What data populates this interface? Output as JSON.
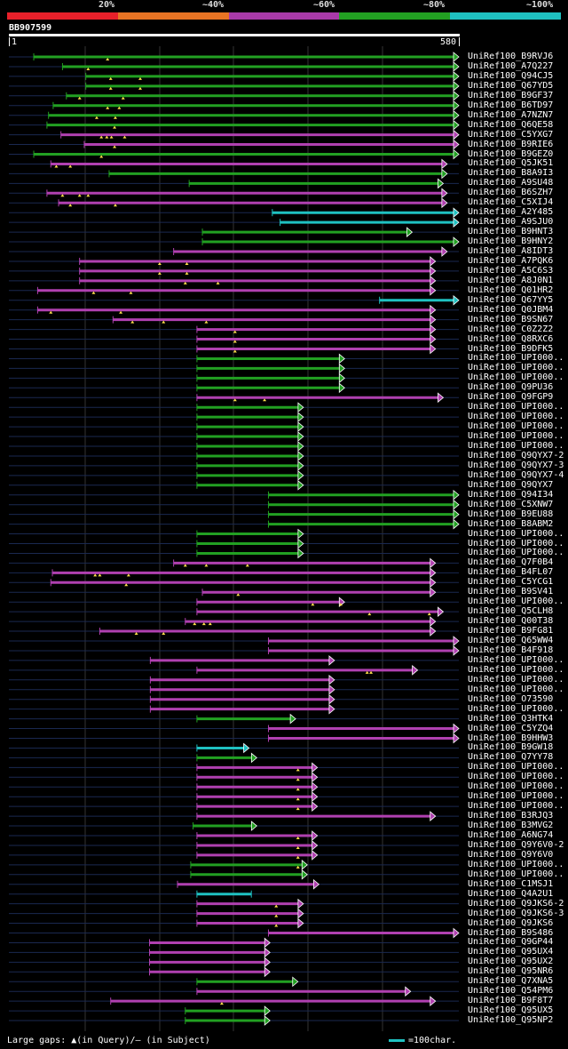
{
  "header": {
    "percent_labels": [
      "20%",
      "~40%",
      "~60%",
      "~80%",
      "~100%"
    ],
    "legend_colors": [
      "#e8202a",
      "#e87424",
      "#a83aa8",
      "#22a022",
      "#1fc1c1"
    ],
    "query_id": "BB907599",
    "ruler_start": "1",
    "ruler_end": "580"
  },
  "footer": {
    "gaps_text": "Large gaps: ▲(in Query)/— (in Subject)",
    "scale_text": "=100char."
  },
  "colors": {
    "green": "#22a022",
    "magenta": "#b040b0",
    "cyan": "#1fc1c1",
    "bg": "#000000"
  },
  "query_length": 580,
  "hits": [
    {
      "label": "UniRef100_B9RVJ6",
      "color": "green",
      "start": 33,
      "end": 580,
      "arrow": true,
      "gaps": [
        128
      ]
    },
    {
      "label": "UniRef100_A7Q227",
      "color": "green",
      "start": 70,
      "end": 580,
      "arrow": true,
      "gaps": [
        103
      ]
    },
    {
      "label": "UniRef100_Q94CJ5",
      "color": "green",
      "start": 100,
      "end": 580,
      "arrow": true,
      "gaps": [
        132,
        170
      ]
    },
    {
      "label": "UniRef100_Q67YD5",
      "color": "green",
      "start": 100,
      "end": 580,
      "arrow": true,
      "gaps": [
        132,
        170
      ]
    },
    {
      "label": "UniRef100_B9GF37",
      "color": "green",
      "start": 75,
      "end": 580,
      "arrow": true,
      "gaps": [
        92,
        148
      ]
    },
    {
      "label": "UniRef100_B6TD97",
      "color": "green",
      "start": 58,
      "end": 580,
      "arrow": true,
      "gaps": [
        128,
        143
      ]
    },
    {
      "label": "UniRef100_A7NZN7",
      "color": "green",
      "start": 52,
      "end": 580,
      "arrow": true,
      "gaps": [
        114,
        138
      ]
    },
    {
      "label": "UniRef100_Q6QE58",
      "color": "green",
      "start": 50,
      "end": 580,
      "arrow": true,
      "gaps": [
        137
      ]
    },
    {
      "label": "UniRef100_C5YXG7",
      "color": "magenta",
      "start": 68,
      "end": 580,
      "arrow": true,
      "gaps": [
        120,
        127,
        133,
        150
      ]
    },
    {
      "label": "UniRef100_B9RIE6",
      "color": "magenta",
      "start": 98,
      "end": 580,
      "arrow": true,
      "gaps": [
        137
      ]
    },
    {
      "label": "UniRef100_B9GEZ0",
      "color": "green",
      "start": 33,
      "end": 580,
      "arrow": true,
      "gaps": [
        120
      ]
    },
    {
      "label": "UniRef100_Q5JK51",
      "color": "magenta",
      "start": 55,
      "end": 565,
      "arrow": true,
      "gaps": [
        62,
        80
      ]
    },
    {
      "label": "UniRef100_B8A9I3",
      "color": "green",
      "start": 130,
      "end": 565,
      "arrow": true,
      "gaps": []
    },
    {
      "label": "UniRef100_A9SU48",
      "color": "green",
      "start": 233,
      "end": 560,
      "arrow": true,
      "gaps": []
    },
    {
      "label": "UniRef100_B6SZH7",
      "color": "magenta",
      "start": 50,
      "end": 565,
      "arrow": true,
      "gaps": [
        70,
        92,
        103
      ]
    },
    {
      "label": "UniRef100_C5XIJ4",
      "color": "magenta",
      "start": 65,
      "end": 565,
      "arrow": true,
      "gaps": [
        80,
        138
      ]
    },
    {
      "label": "UniRef100_A2Y485",
      "color": "cyan",
      "start": 340,
      "end": 580,
      "arrow": true,
      "gaps": []
    },
    {
      "label": "UniRef100_A9SJU0",
      "color": "cyan",
      "start": 350,
      "end": 580,
      "arrow": true,
      "gaps": []
    },
    {
      "label": "UniRef100_B9HNT3",
      "color": "green",
      "start": 250,
      "end": 520,
      "arrow": true,
      "gaps": []
    },
    {
      "label": "UniRef100_B9HNY2",
      "color": "green",
      "start": 250,
      "end": 580,
      "arrow": true,
      "gaps": []
    },
    {
      "label": "UniRef100_A8IDT3",
      "color": "magenta",
      "start": 213,
      "end": 565,
      "arrow": true,
      "gaps": []
    },
    {
      "label": "UniRef100_A7PQK6",
      "color": "magenta",
      "start": 92,
      "end": 550,
      "arrow": true,
      "gaps": [
        195,
        230
      ]
    },
    {
      "label": "UniRef100_A5C6S3",
      "color": "magenta",
      "start": 92,
      "end": 550,
      "arrow": true,
      "gaps": [
        195,
        230
      ]
    },
    {
      "label": "UniRef100_A8J0N1",
      "color": "magenta",
      "start": 92,
      "end": 550,
      "arrow": true,
      "gaps": [
        228,
        270
      ]
    },
    {
      "label": "UniRef100_Q01HR2",
      "color": "magenta",
      "start": 38,
      "end": 550,
      "arrow": true,
      "gaps": [
        110,
        158
      ]
    },
    {
      "label": "UniRef100_Q67YY5",
      "color": "cyan",
      "start": 478,
      "end": 580,
      "arrow": true,
      "gaps": []
    },
    {
      "label": "UniRef100_Q0JBM4",
      "color": "magenta",
      "start": 38,
      "end": 550,
      "arrow": true,
      "gaps": [
        55,
        145
      ]
    },
    {
      "label": "UniRef100_B9SN67",
      "color": "magenta",
      "start": 135,
      "end": 550,
      "arrow": true,
      "gaps": [
        160,
        200,
        255
      ]
    },
    {
      "label": "UniRef100_C0Z2Z2",
      "color": "magenta",
      "start": 243,
      "end": 550,
      "arrow": true,
      "gaps": [
        292
      ]
    },
    {
      "label": "UniRef100_Q8RXC6",
      "color": "magenta",
      "start": 243,
      "end": 550,
      "arrow": true,
      "gaps": [
        292
      ]
    },
    {
      "label": "UniRef100_B9DFK5",
      "color": "magenta",
      "start": 243,
      "end": 550,
      "arrow": true,
      "gaps": [
        292
      ]
    },
    {
      "label": "UniRef100_UPI000..",
      "color": "green",
      "start": 243,
      "end": 433,
      "arrow": true,
      "gaps": []
    },
    {
      "label": "UniRef100_UPI000..",
      "color": "green",
      "start": 243,
      "end": 433,
      "arrow": true,
      "gaps": []
    },
    {
      "label": "UniRef100_UPI000..",
      "color": "green",
      "start": 243,
      "end": 433,
      "arrow": true,
      "gaps": []
    },
    {
      "label": "UniRef100_Q9PU36",
      "color": "green",
      "start": 243,
      "end": 433,
      "arrow": true,
      "gaps": []
    },
    {
      "label": "UniRef100_Q9FGP9",
      "color": "magenta",
      "start": 243,
      "end": 560,
      "arrow": true,
      "gaps": [
        292,
        330
      ]
    },
    {
      "label": "UniRef100_UPI000..",
      "color": "green",
      "start": 243,
      "end": 380,
      "arrow": true,
      "gaps": []
    },
    {
      "label": "UniRef100_UPI000..",
      "color": "green",
      "start": 243,
      "end": 380,
      "arrow": true,
      "gaps": []
    },
    {
      "label": "UniRef100_UPI000..",
      "color": "green",
      "start": 243,
      "end": 380,
      "arrow": true,
      "gaps": []
    },
    {
      "label": "UniRef100_UPI000..",
      "color": "green",
      "start": 243,
      "end": 380,
      "arrow": true,
      "gaps": []
    },
    {
      "label": "UniRef100_UPI000..",
      "color": "green",
      "start": 243,
      "end": 380,
      "arrow": true,
      "gaps": []
    },
    {
      "label": "UniRef100_Q9QYX7-2",
      "color": "green",
      "start": 243,
      "end": 380,
      "arrow": true,
      "gaps": []
    },
    {
      "label": "UniRef100_Q9QYX7-3",
      "color": "green",
      "start": 243,
      "end": 380,
      "arrow": true,
      "gaps": []
    },
    {
      "label": "UniRef100_Q9QYX7-4",
      "color": "green",
      "start": 243,
      "end": 380,
      "arrow": true,
      "gaps": []
    },
    {
      "label": "UniRef100_Q9QYX7",
      "color": "green",
      "start": 243,
      "end": 380,
      "arrow": true,
      "gaps": []
    },
    {
      "label": "UniRef100_Q94I34",
      "color": "green",
      "start": 335,
      "end": 580,
      "arrow": true,
      "gaps": []
    },
    {
      "label": "UniRef100_C5XNW7",
      "color": "green",
      "start": 335,
      "end": 580,
      "arrow": true,
      "gaps": []
    },
    {
      "label": "UniRef100_B9EU88",
      "color": "green",
      "start": 335,
      "end": 580,
      "arrow": true,
      "gaps": []
    },
    {
      "label": "UniRef100_B8ABM2",
      "color": "green",
      "start": 335,
      "end": 580,
      "arrow": true,
      "gaps": []
    },
    {
      "label": "UniRef100_UPI000..",
      "color": "green",
      "start": 243,
      "end": 380,
      "arrow": true,
      "gaps": []
    },
    {
      "label": "UniRef100_UPI000..",
      "color": "green",
      "start": 243,
      "end": 380,
      "arrow": true,
      "gaps": []
    },
    {
      "label": "UniRef100_UPI000..",
      "color": "green",
      "start": 243,
      "end": 380,
      "arrow": true,
      "gaps": []
    },
    {
      "label": "UniRef100_Q7F0B4",
      "color": "magenta",
      "start": 213,
      "end": 550,
      "arrow": true,
      "gaps": [
        228,
        255,
        308
      ]
    },
    {
      "label": "UniRef100_B4FL07",
      "color": "magenta",
      "start": 57,
      "end": 550,
      "arrow": true,
      "gaps": [
        112,
        118,
        155
      ]
    },
    {
      "label": "UniRef100_C5YCG1",
      "color": "magenta",
      "start": 55,
      "end": 550,
      "arrow": true,
      "gaps": [
        152
      ]
    },
    {
      "label": "UniRef100_B9SV41",
      "color": "magenta",
      "start": 250,
      "end": 550,
      "arrow": true,
      "gaps": [
        296
      ]
    },
    {
      "label": "UniRef100_UPI000..",
      "color": "magenta",
      "start": 243,
      "end": 433,
      "arrow": true,
      "gaps": [
        392,
        428
      ]
    },
    {
      "label": "UniRef100_Q5CLH8",
      "color": "magenta",
      "start": 243,
      "end": 560,
      "arrow": true,
      "gaps": [
        465,
        542
      ]
    },
    {
      "label": "UniRef100_Q00T38",
      "color": "magenta",
      "start": 228,
      "end": 550,
      "arrow": true,
      "gaps": [
        240,
        252,
        260
      ]
    },
    {
      "label": "UniRef100_B9FG81",
      "color": "magenta",
      "start": 118,
      "end": 550,
      "arrow": true,
      "gaps": [
        165,
        200
      ]
    },
    {
      "label": "UniRef100_Q65WW4",
      "color": "magenta",
      "start": 335,
      "end": 580,
      "arrow": true,
      "gaps": []
    },
    {
      "label": "UniRef100_B4F918",
      "color": "magenta",
      "start": 335,
      "end": 580,
      "arrow": true,
      "gaps": []
    },
    {
      "label": "UniRef100_UPI000..",
      "color": "magenta",
      "start": 183,
      "end": 420,
      "arrow": true,
      "gaps": []
    },
    {
      "label": "UniRef100_UPI000..",
      "color": "magenta",
      "start": 243,
      "end": 527,
      "arrow": true,
      "gaps": [
        462,
        467
      ]
    },
    {
      "label": "UniRef100_UPI000..",
      "color": "magenta",
      "start": 183,
      "end": 420,
      "arrow": true,
      "gaps": []
    },
    {
      "label": "UniRef100_UPI000..",
      "color": "magenta",
      "start": 183,
      "end": 420,
      "arrow": true,
      "gaps": []
    },
    {
      "label": "UniRef100_O73590",
      "color": "magenta",
      "start": 183,
      "end": 420,
      "arrow": true,
      "gaps": []
    },
    {
      "label": "UniRef100_UPI000..",
      "color": "magenta",
      "start": 183,
      "end": 420,
      "arrow": true,
      "gaps": []
    },
    {
      "label": "UniRef100_Q3HTK4",
      "color": "green",
      "start": 243,
      "end": 370,
      "arrow": true,
      "gaps": []
    },
    {
      "label": "UniRef100_C5YZQ4",
      "color": "magenta",
      "start": 335,
      "end": 580,
      "arrow": true,
      "gaps": []
    },
    {
      "label": "UniRef100_B9HHW3",
      "color": "magenta",
      "start": 335,
      "end": 580,
      "arrow": true,
      "gaps": []
    },
    {
      "label": "UniRef100_B9GW18",
      "color": "cyan",
      "start": 243,
      "end": 310,
      "arrow": true,
      "gaps": []
    },
    {
      "label": "UniRef100_Q7YY78",
      "color": "green",
      "start": 243,
      "end": 320,
      "arrow": true,
      "gaps": []
    },
    {
      "label": "UniRef100_UPI000..",
      "color": "magenta",
      "start": 243,
      "end": 398,
      "arrow": true,
      "gaps": [
        373
      ]
    },
    {
      "label": "UniRef100_UPI000..",
      "color": "magenta",
      "start": 243,
      "end": 398,
      "arrow": true,
      "gaps": [
        373
      ]
    },
    {
      "label": "UniRef100_UPI000..",
      "color": "magenta",
      "start": 243,
      "end": 398,
      "arrow": true,
      "gaps": [
        373
      ]
    },
    {
      "label": "UniRef100_UPI000..",
      "color": "magenta",
      "start": 243,
      "end": 398,
      "arrow": true,
      "gaps": [
        373
      ]
    },
    {
      "label": "UniRef100_UPI000..",
      "color": "magenta",
      "start": 243,
      "end": 398,
      "arrow": true,
      "gaps": [
        373
      ]
    },
    {
      "label": "UniRef100_B3RJQ3",
      "color": "magenta",
      "start": 243,
      "end": 550,
      "arrow": true,
      "gaps": []
    },
    {
      "label": "UniRef100_B3MVG2",
      "color": "green",
      "start": 238,
      "end": 320,
      "arrow": true,
      "gaps": []
    },
    {
      "label": "UniRef100_A6NG74",
      "color": "magenta",
      "start": 243,
      "end": 398,
      "arrow": true,
      "gaps": [
        373
      ]
    },
    {
      "label": "UniRef100_Q9Y6V0-2",
      "color": "magenta",
      "start": 243,
      "end": 398,
      "arrow": true,
      "gaps": [
        373
      ]
    },
    {
      "label": "UniRef100_Q9Y6V0",
      "color": "magenta",
      "start": 243,
      "end": 398,
      "arrow": true,
      "gaps": [
        373
      ]
    },
    {
      "label": "UniRef100_UPI000..",
      "color": "green",
      "start": 235,
      "end": 385,
      "arrow": true,
      "gaps": [
        373
      ]
    },
    {
      "label": "UniRef100_UPI000..",
      "color": "green",
      "start": 235,
      "end": 385,
      "arrow": true,
      "gaps": []
    },
    {
      "label": "UniRef100_C1MSJ1",
      "color": "magenta",
      "start": 218,
      "end": 400,
      "arrow": true,
      "gaps": []
    },
    {
      "label": "UniRef100_Q4A2U1",
      "color": "cyan",
      "start": 243,
      "end": 313,
      "arrow": false,
      "gaps": []
    },
    {
      "label": "UniRef100_Q9JKS6-2",
      "color": "magenta",
      "start": 243,
      "end": 380,
      "arrow": true,
      "gaps": [
        345
      ]
    },
    {
      "label": "UniRef100_Q9JKS6-3",
      "color": "magenta",
      "start": 243,
      "end": 380,
      "arrow": true,
      "gaps": [
        345
      ]
    },
    {
      "label": "UniRef100_Q9JKS6",
      "color": "magenta",
      "start": 243,
      "end": 380,
      "arrow": true,
      "gaps": [
        345
      ]
    },
    {
      "label": "UniRef100_B9S486",
      "color": "magenta",
      "start": 335,
      "end": 580,
      "arrow": true,
      "gaps": []
    },
    {
      "label": "UniRef100_Q9GP44",
      "color": "magenta",
      "start": 182,
      "end": 337,
      "arrow": true,
      "gaps": []
    },
    {
      "label": "UniRef100_Q95UX4",
      "color": "magenta",
      "start": 182,
      "end": 337,
      "arrow": true,
      "gaps": []
    },
    {
      "label": "UniRef100_Q95UX2",
      "color": "magenta",
      "start": 182,
      "end": 337,
      "arrow": true,
      "gaps": []
    },
    {
      "label": "UniRef100_Q95NR6",
      "color": "magenta",
      "start": 182,
      "end": 337,
      "arrow": true,
      "gaps": []
    },
    {
      "label": "UniRef100_Q7XNA5",
      "color": "green",
      "start": 243,
      "end": 373,
      "arrow": true,
      "gaps": []
    },
    {
      "label": "UniRef100_Q54PM6",
      "color": "magenta",
      "start": 243,
      "end": 518,
      "arrow": true,
      "gaps": []
    },
    {
      "label": "UniRef100_B9F8T7",
      "color": "magenta",
      "start": 132,
      "end": 550,
      "arrow": true,
      "gaps": [
        275
      ]
    },
    {
      "label": "UniRef100_Q95UX5",
      "color": "green",
      "start": 228,
      "end": 337,
      "arrow": true,
      "gaps": []
    },
    {
      "label": "UniRef100_Q95NP2",
      "color": "green",
      "start": 228,
      "end": 337,
      "arrow": true,
      "gaps": []
    }
  ]
}
